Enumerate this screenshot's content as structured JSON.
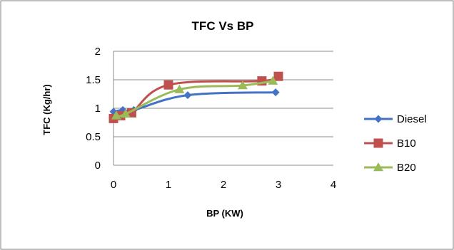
{
  "chart_data": {
    "type": "scatter",
    "title": "TFC Vs BP",
    "xlabel": "BP (KW)",
    "ylabel": "TFC (Kg/hr)",
    "xlim": [
      0,
      4
    ],
    "ylim": [
      0,
      2
    ],
    "x_ticks": [
      "0",
      "1",
      "2",
      "3",
      "4"
    ],
    "y_ticks": [
      "0",
      "0.5",
      "1",
      "1.5",
      "2"
    ],
    "grid": true,
    "legend_position": "right",
    "series": [
      {
        "name": "Diesel",
        "color": "#4472C4",
        "marker": "diamond",
        "x": [
          0.0,
          0.17,
          0.37,
          1.35,
          2.95
        ],
        "y": [
          0.94,
          0.97,
          0.97,
          1.23,
          1.28
        ]
      },
      {
        "name": "B10",
        "color": "#C0504D",
        "marker": "square",
        "x": [
          0.0,
          0.13,
          0.33,
          1.0,
          2.7,
          3.0
        ],
        "y": [
          0.82,
          0.87,
          0.92,
          1.41,
          1.48,
          1.56
        ]
      },
      {
        "name": "B20",
        "color": "#9BBB59",
        "marker": "triangle",
        "x": [
          0.05,
          0.22,
          1.2,
          2.35,
          2.9
        ],
        "y": [
          0.87,
          0.9,
          1.33,
          1.4,
          1.48
        ]
      }
    ]
  }
}
